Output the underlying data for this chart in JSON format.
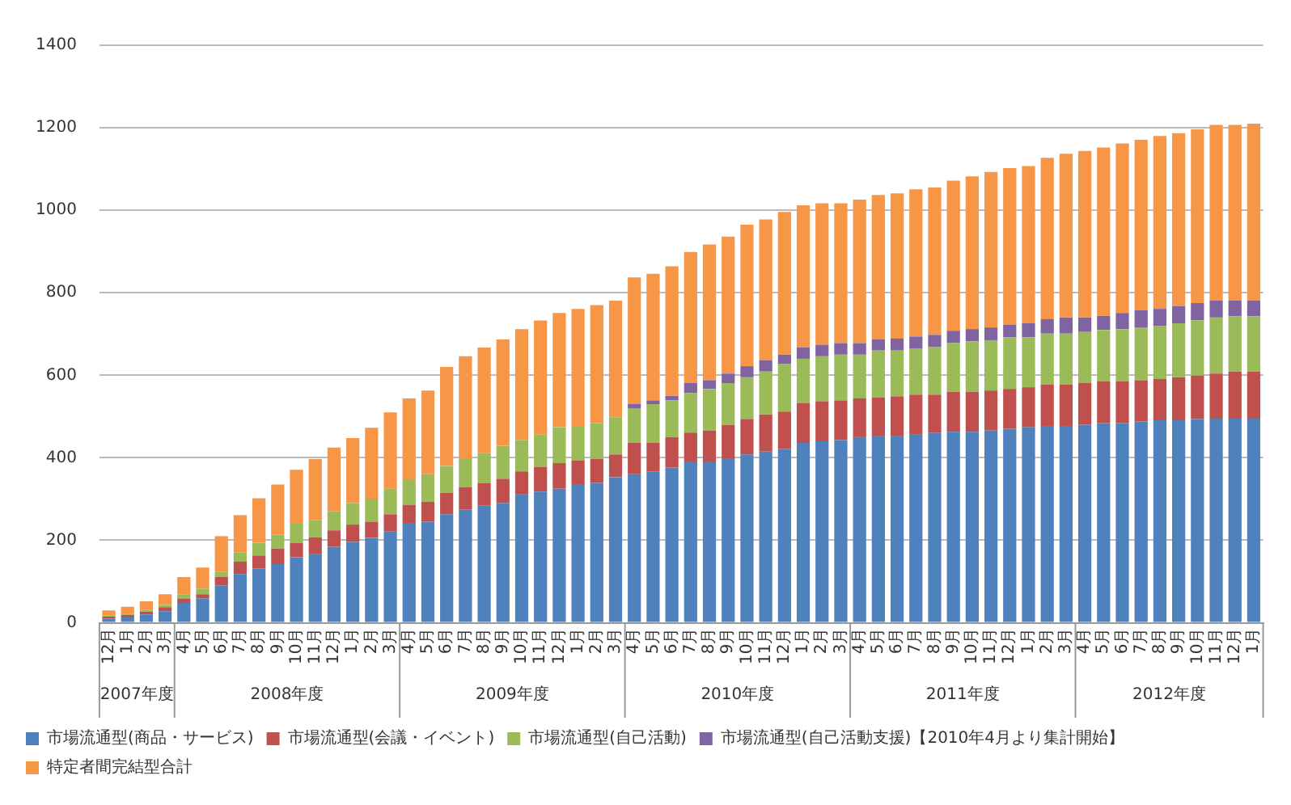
{
  "chart_data": {
    "type": "bar",
    "stacked": true,
    "categories": [
      "12月",
      "1月",
      "2月",
      "3月",
      "4月",
      "5月",
      "6月",
      "7月",
      "8月",
      "9月",
      "10月",
      "11月",
      "12月",
      "1月",
      "2月",
      "3月",
      "4月",
      "5月",
      "6月",
      "7月",
      "8月",
      "9月",
      "10月",
      "11月",
      "12月",
      "1月",
      "2月",
      "3月",
      "4月",
      "5月",
      "6月",
      "7月",
      "8月",
      "9月",
      "10月",
      "11月",
      "12月",
      "1月",
      "2月",
      "3月",
      "4月",
      "5月",
      "6月",
      "7月",
      "8月",
      "9月",
      "10月",
      "11月",
      "12月",
      "1月",
      "2月",
      "3月",
      "4月",
      "5月",
      "6月",
      "7月",
      "8月",
      "9月",
      "10月",
      "11月",
      "12月",
      "1月"
    ],
    "series": [
      {
        "name": "市場流通型(商品・サービス)",
        "color": "#4f81bd",
        "values": [
          10,
          13,
          20,
          28,
          48,
          59,
          90,
          118,
          131,
          142,
          159,
          166,
          184,
          196,
          206,
          221,
          242,
          245,
          263,
          274,
          284,
          290,
          311,
          318,
          325,
          336,
          339,
          353,
          360,
          367,
          376,
          391,
          391,
          397,
          408,
          415,
          422,
          436,
          440,
          443,
          450,
          452,
          452,
          456,
          461,
          463,
          463,
          466,
          470,
          474,
          477,
          477,
          480,
          484,
          484,
          488,
          491,
          491,
          494,
          495,
          495,
          495
        ]
      },
      {
        "name": "市場流通型(会議・イベント)",
        "color": "#c0504d",
        "values": [
          5,
          6,
          7,
          10,
          11,
          10,
          21,
          30,
          32,
          38,
          35,
          41,
          40,
          42,
          39,
          42,
          44,
          48,
          52,
          55,
          55,
          59,
          56,
          60,
          62,
          58,
          58,
          55,
          76,
          69,
          74,
          70,
          75,
          83,
          86,
          90,
          90,
          97,
          97,
          96,
          94,
          94,
          97,
          97,
          92,
          97,
          97,
          97,
          97,
          97,
          100,
          100,
          101,
          101,
          101,
          100,
          100,
          104,
          105,
          109,
          114,
          114
        ]
      },
      {
        "name": "市場流通型(自己活動)",
        "color": "#9bbb59",
        "values": [
          3,
          3,
          4,
          5,
          10,
          14,
          13,
          22,
          31,
          34,
          48,
          42,
          46,
          52,
          56,
          62,
          60,
          67,
          65,
          68,
          72,
          80,
          76,
          79,
          87,
          83,
          87,
          90,
          83,
          94,
          89,
          96,
          101,
          101,
          101,
          104,
          115,
          107,
          109,
          111,
          106,
          114,
          111,
          111,
          115,
          118,
          122,
          122,
          125,
          121,
          124,
          124,
          124,
          125,
          127,
          128,
          128,
          131,
          134,
          136,
          134,
          134
        ]
      },
      {
        "name": "市場流通型(自己活動支援)【2010年4月より集計開始】",
        "color": "#8064a2",
        "values": [
          null,
          null,
          null,
          null,
          null,
          null,
          null,
          null,
          null,
          null,
          null,
          null,
          null,
          null,
          null,
          null,
          null,
          null,
          null,
          null,
          null,
          null,
          null,
          null,
          null,
          null,
          null,
          null,
          11,
          9,
          11,
          24,
          21,
          23,
          27,
          27,
          23,
          28,
          28,
          28,
          28,
          27,
          29,
          30,
          30,
          30,
          30,
          31,
          31,
          34,
          35,
          39,
          35,
          34,
          39,
          42,
          42,
          42,
          42,
          41,
          38,
          38
        ]
      },
      {
        "name": "特定者間完結型合計",
        "color": "#f79646",
        "values": [
          12,
          17,
          21,
          26,
          42,
          51,
          86,
          91,
          108,
          121,
          129,
          148,
          155,
          158,
          172,
          185,
          198,
          203,
          240,
          249,
          256,
          258,
          269,
          276,
          277,
          284,
          286,
          283,
          307,
          307,
          314,
          318,
          329,
          332,
          343,
          342,
          346,
          344,
          343,
          339,
          348,
          350,
          352,
          357,
          357,
          364,
          370,
          377,
          379,
          381,
          391,
          397,
          404,
          408,
          411,
          413,
          419,
          419,
          421,
          426,
          426,
          429
        ]
      }
    ],
    "ylim": [
      0,
      1400
    ],
    "yticks": [
      0,
      200,
      400,
      600,
      800,
      1000,
      1200,
      1400
    ],
    "grid": "y",
    "legend": "bottom",
    "annotations": [
      "2007年度",
      "2008年度",
      "2009年度",
      "2010年度",
      "2011年度",
      "2012年度"
    ]
  }
}
